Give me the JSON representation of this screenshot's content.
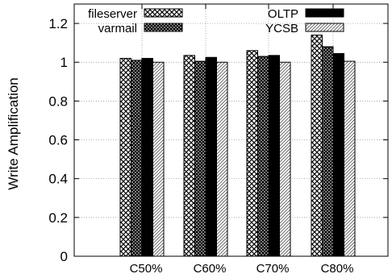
{
  "chart_data": {
    "type": "bar",
    "categories": [
      "C50%",
      "C60%",
      "C70%",
      "C80%"
    ],
    "series": [
      {
        "name": "fileserver",
        "pattern": "crosshatch",
        "values": [
          1.02,
          1.035,
          1.06,
          1.14
        ]
      },
      {
        "name": "varmail",
        "pattern": "dense-dots",
        "values": [
          1.01,
          1.005,
          1.03,
          1.08
        ]
      },
      {
        "name": "OLTP",
        "pattern": "solid-black",
        "values": [
          1.02,
          1.025,
          1.035,
          1.045
        ]
      },
      {
        "name": "YCSB",
        "pattern": "diagonal-lines",
        "values": [
          1.0,
          1.0,
          1.0,
          1.005
        ]
      }
    ],
    "ylabel": "Write Amplification",
    "xlabel": "",
    "ylim": [
      0,
      1.3
    ],
    "yticks": [
      "0",
      "0.2",
      "0.4",
      "0.6",
      "0.8",
      "1",
      "1.2"
    ],
    "grid": true,
    "legend_position": "top"
  }
}
